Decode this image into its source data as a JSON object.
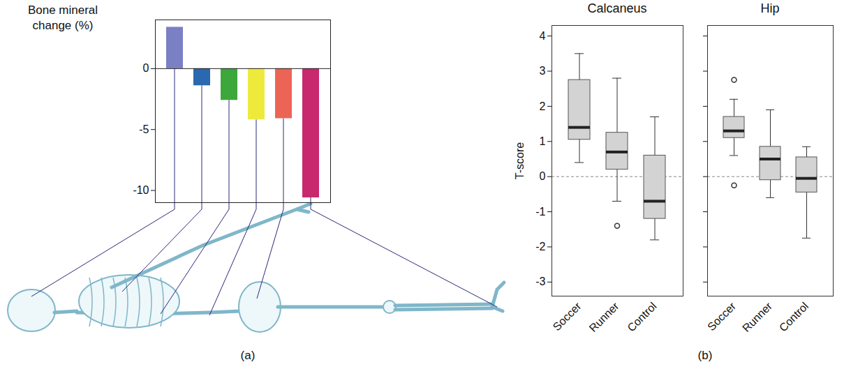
{
  "chart_data": [
    {
      "type": "bar",
      "panel": "(a)",
      "ylabel": "Bone mineral change (%)",
      "categories": [
        null,
        null,
        null,
        null,
        null,
        null
      ],
      "values": [
        3.4,
        -1.4,
        -2.6,
        -4.2,
        -4.1,
        -10.6
      ],
      "colors": [
        "#7b7fc4",
        "#2a68b0",
        "#3ca83c",
        "#eeea3c",
        "#ec6455",
        "#c8286e"
      ],
      "ylim": [
        -11,
        4
      ],
      "yticks": [
        -10,
        -5,
        0
      ]
    },
    {
      "type": "box",
      "panel": "(b)",
      "title": "Calcaneus",
      "ylabel": "T-score",
      "categories": [
        "Soccer",
        "Runner",
        "Control"
      ],
      "min": [
        0.4,
        -0.7,
        -1.8
      ],
      "q1": [
        1.05,
        0.2,
        -1.2
      ],
      "median": [
        1.4,
        0.7,
        -0.7
      ],
      "q3": [
        2.75,
        1.25,
        0.6
      ],
      "max": [
        3.5,
        2.8,
        1.7
      ],
      "outliers": [
        [],
        [
          -1.4
        ],
        []
      ],
      "ylim": [
        -3.4,
        4.3
      ],
      "yticks": [
        -3,
        -2,
        -1,
        0,
        1,
        2,
        3,
        4
      ],
      "reference_line": 0
    },
    {
      "type": "box",
      "title": "Hip",
      "categories": [
        "Soccer",
        "Runner",
        "Control"
      ],
      "min": [
        0.6,
        -0.6,
        -1.75
      ],
      "q1": [
        1.1,
        -0.1,
        -0.45
      ],
      "median": [
        1.3,
        0.5,
        -0.05
      ],
      "q3": [
        1.7,
        0.85,
        0.55
      ],
      "max": [
        2.2,
        1.9,
        0.85
      ],
      "outliers": [
        [
          2.75,
          -0.25
        ],
        [],
        []
      ],
      "ylim": [
        -3.4,
        4.3
      ],
      "yticks": [
        -3,
        -2,
        -1,
        0,
        1,
        2,
        3,
        4
      ],
      "reference_line": 0,
      "tick_labels": "x"
    }
  ]
}
